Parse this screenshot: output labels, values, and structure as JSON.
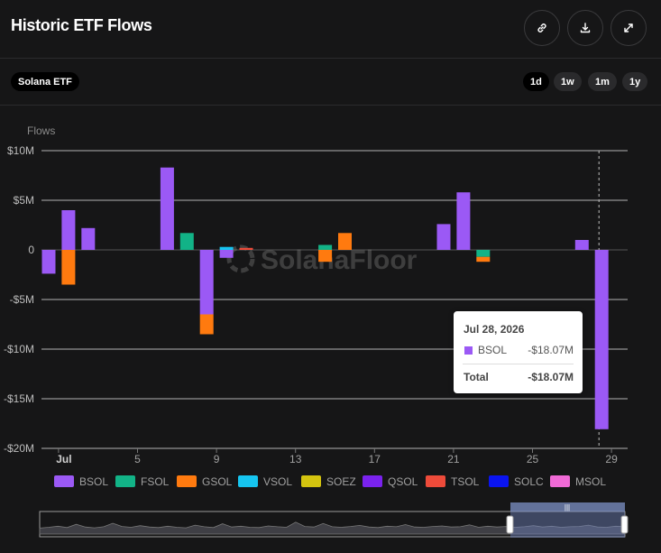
{
  "header": {
    "title": "Historic ETF Flows",
    "buttons": [
      {
        "name": "share-link-button",
        "icon": "link-icon"
      },
      {
        "name": "download-button",
        "icon": "download-icon"
      },
      {
        "name": "expand-button",
        "icon": "expand-icon"
      }
    ]
  },
  "filter": {
    "selected": "Solana ETF"
  },
  "ranges": [
    "1d",
    "1w",
    "1m",
    "1y"
  ],
  "active_range": "1d",
  "watermark": "SolanaFloor",
  "tooltip": {
    "date": "Jul 28, 2026",
    "series": "BSOL",
    "value": "-$18.07M",
    "total_label": "Total",
    "total_value": "-$18.07M"
  },
  "chart_data": {
    "type": "bar",
    "stacked": true,
    "ylabel": "Flows",
    "ylim": [
      -20,
      10
    ],
    "yticks": [
      10,
      5,
      0,
      -5,
      -10,
      -15,
      -20
    ],
    "ytick_labels": [
      "$10M",
      "$5M",
      "0",
      "-$5M",
      "-$10M",
      "-$15M",
      "-$20M"
    ],
    "x_start_day": 1,
    "x_end_day": 29,
    "xticks": [
      {
        "day": 2,
        "label": "Jul"
      },
      {
        "day": 6,
        "label": "5"
      },
      {
        "day": 10,
        "label": "9"
      },
      {
        "day": 14,
        "label": "13"
      },
      {
        "day": 18,
        "label": "17"
      },
      {
        "day": 22,
        "label": "21"
      },
      {
        "day": 26,
        "label": "25"
      },
      {
        "day": 30,
        "label": "29"
      }
    ],
    "highlight_day": 29,
    "series": [
      {
        "name": "BSOL",
        "color": "#9b59f5",
        "values": {
          "1": -2.4,
          "2": 4.0,
          "3": 2.2,
          "7": 8.3,
          "9": -6.5,
          "10": -0.8,
          "21": 2.6,
          "22": 5.8,
          "28": 1.0,
          "29": -18.07
        }
      },
      {
        "name": "FSOL",
        "color": "#12b387",
        "values": {
          "8": 1.7,
          "15": 0.5,
          "23": -0.7
        }
      },
      {
        "name": "GSOL",
        "color": "#ff7a0f",
        "values": {
          "2": -3.5,
          "9": -2.0,
          "15": -1.2,
          "16": 1.7,
          "23": -0.5
        }
      },
      {
        "name": "VSOL",
        "color": "#16c5f0",
        "values": {
          "10": 0.3
        }
      },
      {
        "name": "SOEZ",
        "color": "#d4c40f",
        "values": {}
      },
      {
        "name": "QSOL",
        "color": "#7a22ee",
        "values": {}
      },
      {
        "name": "TSOL",
        "color": "#ee4b3a",
        "values": {
          "11": 0.2
        }
      },
      {
        "name": "SOLC",
        "color": "#0a14f0",
        "values": {}
      },
      {
        "name": "MSOL",
        "color": "#f06ad6",
        "values": {}
      }
    ]
  }
}
